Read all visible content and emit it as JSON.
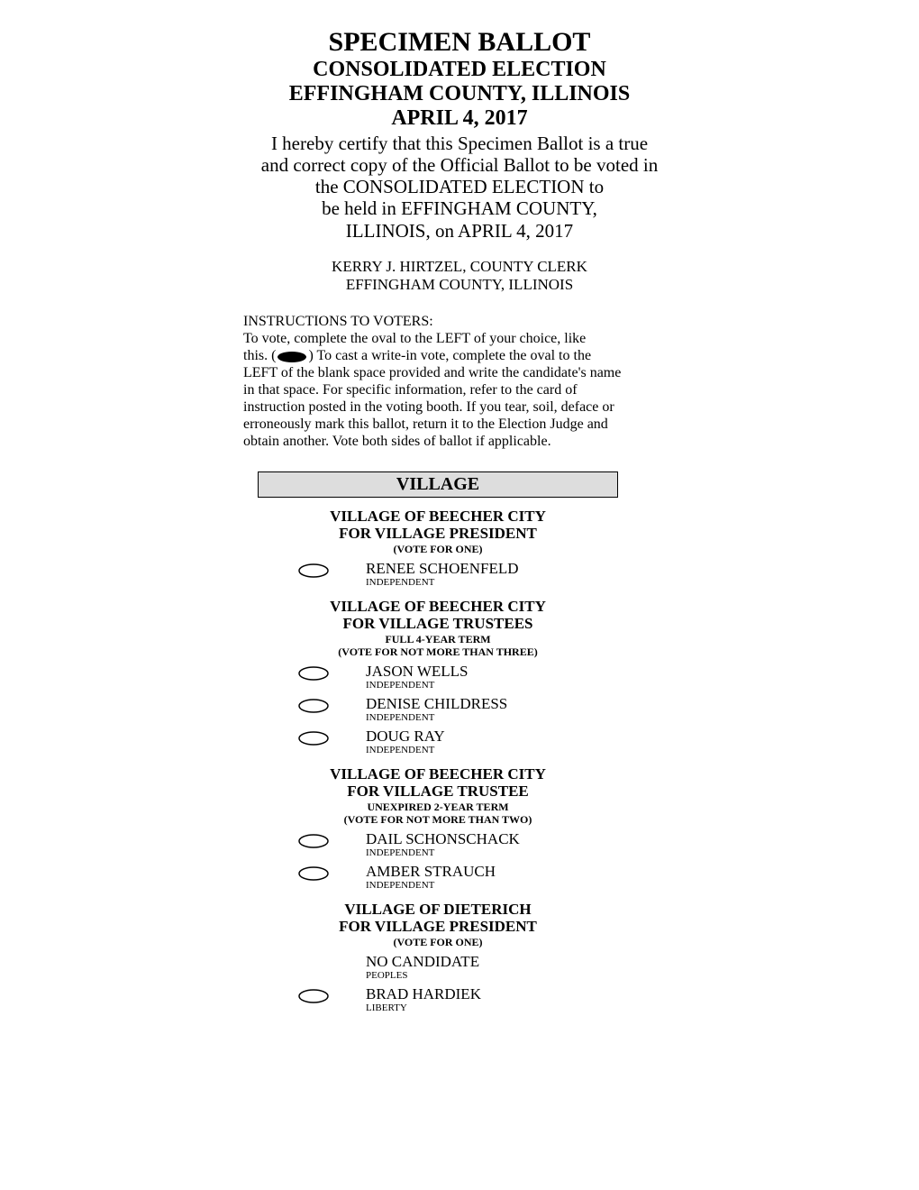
{
  "header": {
    "title_main": "SPECIMEN BALLOT",
    "title_sub1": "CONSOLIDATED ELECTION",
    "title_sub2": "EFFINGHAM COUNTY, ILLINOIS",
    "title_sub3": "APRIL 4, 2017",
    "cert_line1": "I hereby certify that this Specimen Ballot is a true",
    "cert_line2": "and correct copy of the Official Ballot to be voted in",
    "cert_line3": "the CONSOLIDATED ELECTION to",
    "cert_line4": "be held in EFFINGHAM COUNTY,",
    "cert_line5": "ILLINOIS, on APRIL 4, 2017",
    "clerk_name": "KERRY J. HIRTZEL, COUNTY CLERK",
    "clerk_county": "EFFINGHAM COUNTY, ILLINOIS"
  },
  "instructions": {
    "heading": "INSTRUCTIONS TO VOTERS:",
    "line1": "To vote, complete the oval to the LEFT of your choice, like",
    "line2a": "this.   (",
    "line2b": ")   To cast a write-in vote, complete the oval to the",
    "line3": "LEFT of the blank space provided and write the candidate's name in that space.  For specific information, refer to the card of instruction posted in the voting booth.  If you tear, soil, deface or erroneously mark this ballot, return it to the Election Judge and obtain another.  Vote both sides of ballot if applicable."
  },
  "section": {
    "title": "VILLAGE"
  },
  "races": [
    {
      "title1": "VILLAGE OF BEECHER CITY",
      "title2": "FOR VILLAGE PRESIDENT",
      "sub1": "(VOTE FOR ONE)",
      "sub2": "",
      "candidates": [
        {
          "name": "RENEE SCHOENFELD",
          "party": "INDEPENDENT",
          "has_oval": true
        }
      ]
    },
    {
      "title1": "VILLAGE OF BEECHER CITY",
      "title2": "FOR VILLAGE TRUSTEES",
      "sub1": "FULL 4-YEAR TERM",
      "sub2": "(VOTE FOR NOT MORE THAN THREE)",
      "candidates": [
        {
          "name": "JASON WELLS",
          "party": "INDEPENDENT",
          "has_oval": true
        },
        {
          "name": "DENISE CHILDRESS",
          "party": "INDEPENDENT",
          "has_oval": true
        },
        {
          "name": "DOUG RAY",
          "party": "INDEPENDENT",
          "has_oval": true
        }
      ]
    },
    {
      "title1": "VILLAGE OF BEECHER CITY",
      "title2": "FOR VILLAGE TRUSTEE",
      "sub1": "UNEXPIRED 2-YEAR TERM",
      "sub2": "(VOTE FOR NOT MORE THAN TWO)",
      "candidates": [
        {
          "name": "DAIL SCHONSCHACK",
          "party": "INDEPENDENT",
          "has_oval": true
        },
        {
          "name": "AMBER STRAUCH",
          "party": "INDEPENDENT",
          "has_oval": true
        }
      ]
    },
    {
      "title1": "VILLAGE OF DIETERICH",
      "title2": "FOR VILLAGE PRESIDENT",
      "sub1": "(VOTE FOR ONE)",
      "sub2": "",
      "candidates": [
        {
          "name": "NO CANDIDATE",
          "party": "PEOPLES",
          "has_oval": false
        },
        {
          "name": "BRAD HARDIEK",
          "party": "LIBERTY",
          "has_oval": true
        }
      ]
    }
  ],
  "style": {
    "oval_width": 36,
    "oval_height": 18,
    "oval_stroke": "#000000",
    "oval_stroke_width": 1.5
  }
}
